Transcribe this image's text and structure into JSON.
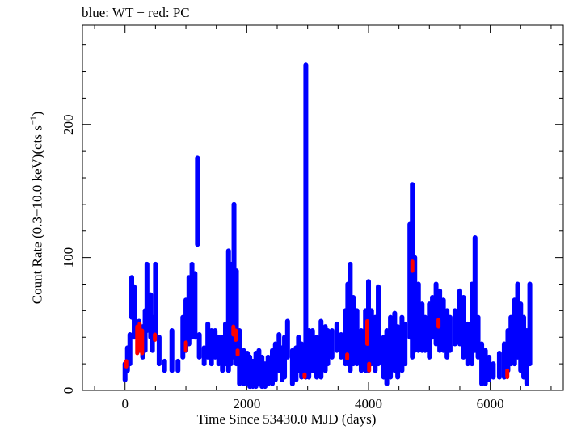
{
  "chart_data": {
    "type": "scatter",
    "title": "blue: WT − red: PC",
    "xlabel": "Time Since 53430.0 MJD (days)",
    "ylabel_main": "Count Rate (0.3−10.0 keV)(cts s",
    "ylabel_sup": "−1",
    "ylabel_end": ")",
    "xlim": [
      -700,
      7200
    ],
    "ylim": [
      0,
      275
    ],
    "x_ticks": [
      0,
      2000,
      4000,
      6000
    ],
    "y_ticks": [
      0,
      100,
      200
    ],
    "x_tick_labels": [
      "0",
      "2000",
      "4000",
      "6000"
    ],
    "y_tick_labels": [
      "0",
      "100",
      "200"
    ],
    "grid": false,
    "series": [
      {
        "color": "#0000ff",
        "points": [
          {
            "x": 0,
            "lo": 8,
            "hi": 20
          },
          {
            "x": 40,
            "lo": 15,
            "hi": 32
          },
          {
            "x": 80,
            "lo": 20,
            "hi": 42
          },
          {
            "x": 110,
            "lo": 55,
            "hi": 85
          },
          {
            "x": 150,
            "lo": 40,
            "hi": 78
          },
          {
            "x": 230,
            "lo": 30,
            "hi": 52
          },
          {
            "x": 290,
            "lo": 25,
            "hi": 48
          },
          {
            "x": 330,
            "lo": 30,
            "hi": 60
          },
          {
            "x": 360,
            "lo": 45,
            "hi": 95
          },
          {
            "x": 420,
            "lo": 40,
            "hi": 72
          },
          {
            "x": 450,
            "lo": 30,
            "hi": 55
          },
          {
            "x": 500,
            "lo": 40,
            "hi": 95
          },
          {
            "x": 560,
            "lo": 20,
            "hi": 40
          },
          {
            "x": 650,
            "lo": 15,
            "hi": 22
          },
          {
            "x": 770,
            "lo": 15,
            "hi": 45
          },
          {
            "x": 870,
            "lo": 15,
            "hi": 22
          },
          {
            "x": 950,
            "lo": 25,
            "hi": 55
          },
          {
            "x": 1000,
            "lo": 30,
            "hi": 68
          },
          {
            "x": 1050,
            "lo": 35,
            "hi": 85
          },
          {
            "x": 1100,
            "lo": 40,
            "hi": 95
          },
          {
            "x": 1150,
            "lo": 40,
            "hi": 88
          },
          {
            "x": 1190,
            "lo": 110,
            "hi": 175
          },
          {
            "x": 1220,
            "lo": 25,
            "hi": 42
          },
          {
            "x": 1300,
            "lo": 20,
            "hi": 32
          },
          {
            "x": 1360,
            "lo": 25,
            "hi": 50
          },
          {
            "x": 1420,
            "lo": 20,
            "hi": 45
          },
          {
            "x": 1480,
            "lo": 25,
            "hi": 45
          },
          {
            "x": 1540,
            "lo": 20,
            "hi": 40
          },
          {
            "x": 1600,
            "lo": 15,
            "hi": 40
          },
          {
            "x": 1650,
            "lo": 20,
            "hi": 50
          },
          {
            "x": 1700,
            "lo": 15,
            "hi": 105
          },
          {
            "x": 1740,
            "lo": 20,
            "hi": 95
          },
          {
            "x": 1790,
            "lo": 25,
            "hi": 140
          },
          {
            "x": 1830,
            "lo": 20,
            "hi": 90
          },
          {
            "x": 1880,
            "lo": 5,
            "hi": 45
          },
          {
            "x": 1950,
            "lo": 5,
            "hi": 30
          },
          {
            "x": 2010,
            "lo": 5,
            "hi": 28
          },
          {
            "x": 2050,
            "lo": 3,
            "hi": 25
          },
          {
            "x": 2100,
            "lo": 3,
            "hi": 22
          },
          {
            "x": 2150,
            "lo": 3,
            "hi": 28
          },
          {
            "x": 2200,
            "lo": 5,
            "hi": 30
          },
          {
            "x": 2250,
            "lo": 3,
            "hi": 25
          },
          {
            "x": 2300,
            "lo": 3,
            "hi": 20
          },
          {
            "x": 2350,
            "lo": 5,
            "hi": 25
          },
          {
            "x": 2420,
            "lo": 5,
            "hi": 30
          },
          {
            "x": 2470,
            "lo": 8,
            "hi": 35
          },
          {
            "x": 2530,
            "lo": 15,
            "hi": 42
          },
          {
            "x": 2580,
            "lo": 8,
            "hi": 32
          },
          {
            "x": 2620,
            "lo": 10,
            "hi": 40
          },
          {
            "x": 2670,
            "lo": 25,
            "hi": 52
          },
          {
            "x": 2750,
            "lo": 5,
            "hi": 30
          },
          {
            "x": 2810,
            "lo": 8,
            "hi": 32
          },
          {
            "x": 2850,
            "lo": 15,
            "hi": 40
          },
          {
            "x": 2900,
            "lo": 10,
            "hi": 35
          },
          {
            "x": 2970,
            "lo": 10,
            "hi": 245
          },
          {
            "x": 3020,
            "lo": 10,
            "hi": 45
          },
          {
            "x": 3080,
            "lo": 15,
            "hi": 45
          },
          {
            "x": 3150,
            "lo": 10,
            "hi": 40
          },
          {
            "x": 3220,
            "lo": 10,
            "hi": 52
          },
          {
            "x": 3290,
            "lo": 15,
            "hi": 48
          },
          {
            "x": 3330,
            "lo": 20,
            "hi": 45
          },
          {
            "x": 3400,
            "lo": 25,
            "hi": 45
          },
          {
            "x": 3480,
            "lo": 30,
            "hi": 50
          },
          {
            "x": 3550,
            "lo": 25,
            "hi": 42
          },
          {
            "x": 3620,
            "lo": 20,
            "hi": 60
          },
          {
            "x": 3660,
            "lo": 20,
            "hi": 80
          },
          {
            "x": 3700,
            "lo": 15,
            "hi": 95
          },
          {
            "x": 3750,
            "lo": 20,
            "hi": 70
          },
          {
            "x": 3810,
            "lo": 20,
            "hi": 60
          },
          {
            "x": 3880,
            "lo": 15,
            "hi": 45
          },
          {
            "x": 3950,
            "lo": 15,
            "hi": 60
          },
          {
            "x": 4000,
            "lo": 15,
            "hi": 82
          },
          {
            "x": 4050,
            "lo": 20,
            "hi": 60
          },
          {
            "x": 4110,
            "lo": 15,
            "hi": 55
          },
          {
            "x": 4160,
            "lo": 20,
            "hi": 78
          },
          {
            "x": 4250,
            "lo": 10,
            "hi": 40
          },
          {
            "x": 4300,
            "lo": 5,
            "hi": 45
          },
          {
            "x": 4360,
            "lo": 10,
            "hi": 55
          },
          {
            "x": 4430,
            "lo": 15,
            "hi": 58
          },
          {
            "x": 4480,
            "lo": 10,
            "hi": 48
          },
          {
            "x": 4550,
            "lo": 15,
            "hi": 55
          },
          {
            "x": 4600,
            "lo": 20,
            "hi": 50
          },
          {
            "x": 4680,
            "lo": 40,
            "hi": 125
          },
          {
            "x": 4720,
            "lo": 25,
            "hi": 155
          },
          {
            "x": 4760,
            "lo": 30,
            "hi": 100
          },
          {
            "x": 4820,
            "lo": 30,
            "hi": 80
          },
          {
            "x": 4880,
            "lo": 30,
            "hi": 65
          },
          {
            "x": 4930,
            "lo": 30,
            "hi": 55
          },
          {
            "x": 5000,
            "lo": 25,
            "hi": 65
          },
          {
            "x": 5050,
            "lo": 40,
            "hi": 70
          },
          {
            "x": 5110,
            "lo": 35,
            "hi": 80
          },
          {
            "x": 5170,
            "lo": 30,
            "hi": 75
          },
          {
            "x": 5230,
            "lo": 30,
            "hi": 68
          },
          {
            "x": 5290,
            "lo": 25,
            "hi": 60
          },
          {
            "x": 5340,
            "lo": 30,
            "hi": 55
          },
          {
            "x": 5420,
            "lo": 35,
            "hi": 60
          },
          {
            "x": 5500,
            "lo": 35,
            "hi": 75
          },
          {
            "x": 5560,
            "lo": 25,
            "hi": 70
          },
          {
            "x": 5630,
            "lo": 20,
            "hi": 50
          },
          {
            "x": 5700,
            "lo": 20,
            "hi": 80
          },
          {
            "x": 5750,
            "lo": 30,
            "hi": 115
          },
          {
            "x": 5800,
            "lo": 25,
            "hi": 55
          },
          {
            "x": 5860,
            "lo": 5,
            "hi": 35
          },
          {
            "x": 5920,
            "lo": 5,
            "hi": 30
          },
          {
            "x": 5980,
            "lo": 8,
            "hi": 25
          },
          {
            "x": 6050,
            "lo": 10,
            "hi": 20
          },
          {
            "x": 6150,
            "lo": 10,
            "hi": 28
          },
          {
            "x": 6230,
            "lo": 10,
            "hi": 35
          },
          {
            "x": 6290,
            "lo": 15,
            "hi": 45
          },
          {
            "x": 6340,
            "lo": 20,
            "hi": 55
          },
          {
            "x": 6400,
            "lo": 20,
            "hi": 68
          },
          {
            "x": 6450,
            "lo": 25,
            "hi": 80
          },
          {
            "x": 6500,
            "lo": 15,
            "hi": 65
          },
          {
            "x": 6550,
            "lo": 10,
            "hi": 55
          },
          {
            "x": 6600,
            "lo": 5,
            "hi": 45
          },
          {
            "x": 6650,
            "lo": 20,
            "hi": 80
          }
        ]
      },
      {
        "color": "#ff0000",
        "points": [
          {
            "x": 20,
            "lo": 18,
            "hi": 22
          },
          {
            "x": 200,
            "lo": 28,
            "hi": 48
          },
          {
            "x": 240,
            "lo": 30,
            "hi": 50
          },
          {
            "x": 280,
            "lo": 28,
            "hi": 45
          },
          {
            "x": 490,
            "lo": 38,
            "hi": 42
          },
          {
            "x": 1000,
            "lo": 30,
            "hi": 36
          },
          {
            "x": 1780,
            "lo": 42,
            "hi": 48
          },
          {
            "x": 1820,
            "lo": 38,
            "hi": 45
          },
          {
            "x": 1850,
            "lo": 27,
            "hi": 30
          },
          {
            "x": 2950,
            "lo": 10,
            "hi": 12
          },
          {
            "x": 3650,
            "lo": 24,
            "hi": 27
          },
          {
            "x": 3980,
            "lo": 35,
            "hi": 52
          },
          {
            "x": 4010,
            "lo": 15,
            "hi": 20
          },
          {
            "x": 4720,
            "lo": 90,
            "hi": 97
          },
          {
            "x": 5150,
            "lo": 48,
            "hi": 53
          },
          {
            "x": 6280,
            "lo": 10,
            "hi": 15
          }
        ]
      }
    ]
  }
}
